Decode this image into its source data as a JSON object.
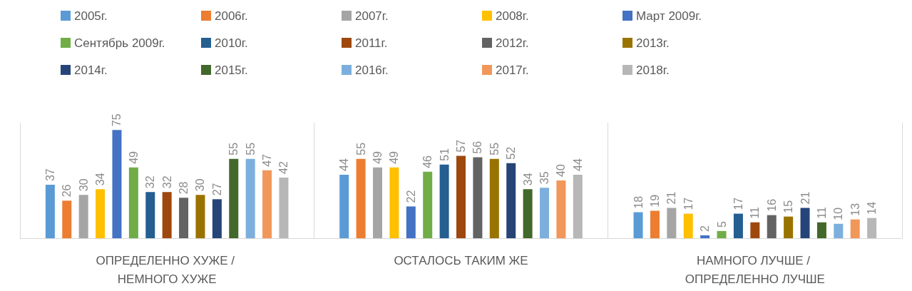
{
  "chart_data": {
    "type": "bar",
    "categories": [
      "ОПРЕДЕЛЕННО ХУЖЕ / НЕМНОГО ХУЖЕ",
      "ОСТАЛОСЬ ТАКИМ ЖЕ",
      "НАМНОГО ЛУЧШЕ / ОПРЕДЕЛЕННО ЛУЧШЕ"
    ],
    "series": [
      {
        "name": "2005г.",
        "color": "#5b9bd5",
        "values": [
          37,
          44,
          18
        ]
      },
      {
        "name": "2006г.",
        "color": "#ed7d31",
        "values": [
          26,
          55,
          19
        ]
      },
      {
        "name": "2007г.",
        "color": "#a5a5a5",
        "values": [
          30,
          49,
          21
        ]
      },
      {
        "name": "2008г.",
        "color": "#ffc000",
        "values": [
          34,
          49,
          17
        ]
      },
      {
        "name": "Март 2009г.",
        "color": "#4472c4",
        "values": [
          75,
          22,
          2
        ]
      },
      {
        "name": "Сентябрь 2009г.",
        "color": "#70ad47",
        "values": [
          49,
          46,
          5
        ]
      },
      {
        "name": "2010г.",
        "color": "#255e91",
        "values": [
          32,
          51,
          17
        ]
      },
      {
        "name": "2011г.",
        "color": "#9e480e",
        "values": [
          32,
          57,
          11
        ]
      },
      {
        "name": "2012г.",
        "color": "#636363",
        "values": [
          28,
          56,
          16
        ]
      },
      {
        "name": "2013г.",
        "color": "#997300",
        "values": [
          30,
          55,
          15
        ]
      },
      {
        "name": "2014г.",
        "color": "#264478",
        "values": [
          27,
          52,
          21
        ]
      },
      {
        "name": "2015г.",
        "color": "#43682b",
        "values": [
          55,
          34,
          11
        ]
      },
      {
        "name": "2016г.",
        "color": "#7cafdd",
        "values": [
          55,
          35,
          10
        ]
      },
      {
        "name": "2017г.",
        "color": "#f1975a",
        "values": [
          47,
          40,
          13
        ]
      },
      {
        "name": "2018г.",
        "color": "#b7b7b7",
        "values": [
          42,
          44,
          14
        ]
      }
    ],
    "data_labels": true,
    "grid": "x",
    "legend": "top"
  }
}
